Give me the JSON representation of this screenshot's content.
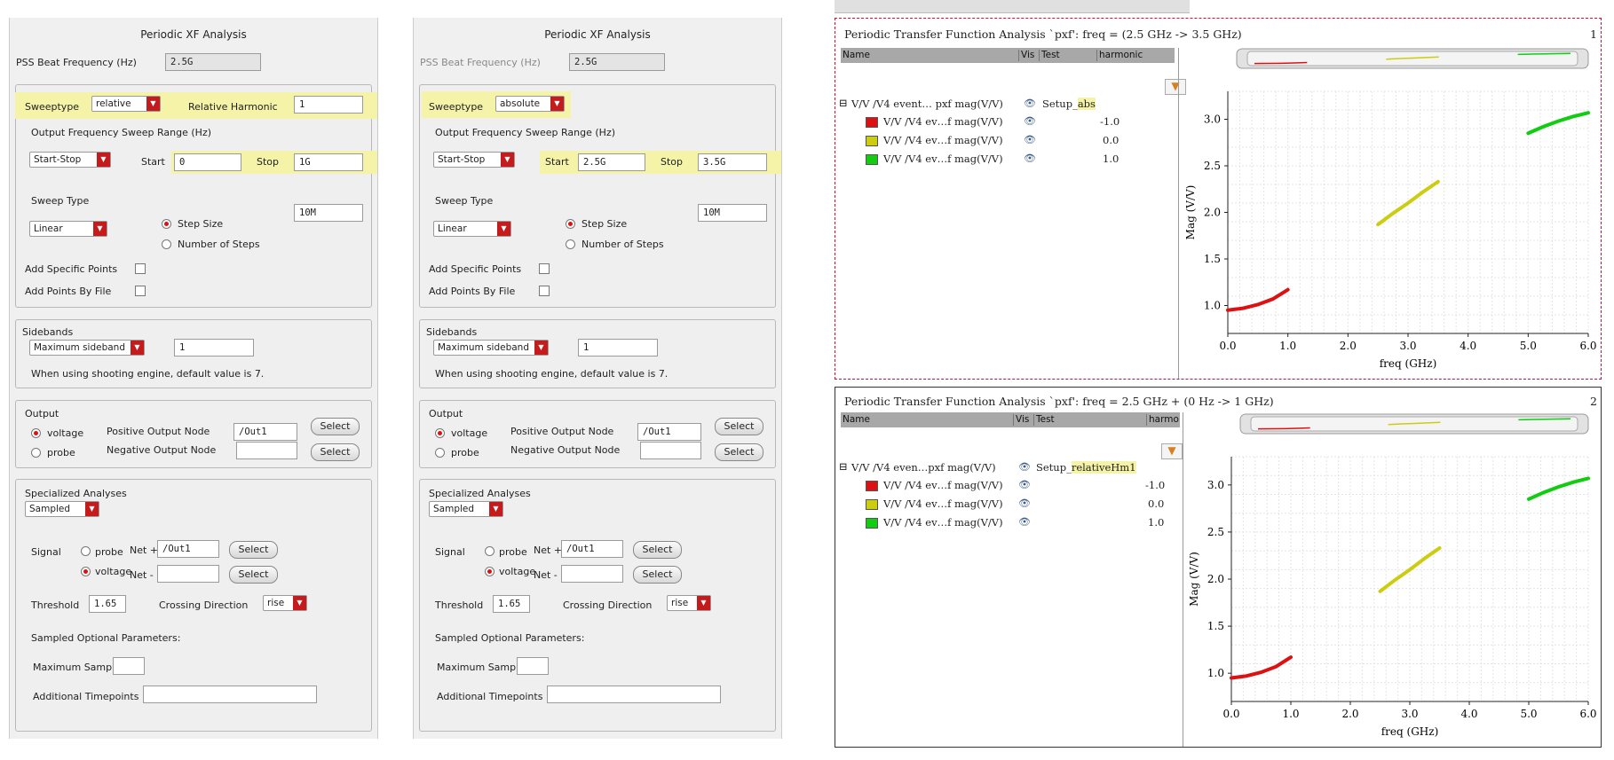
{
  "formA": {
    "title": "Periodic XF Analysis",
    "beat_label": "PSS Beat Frequency (Hz)",
    "beat_value": "2.5G",
    "sweeptype_label": "Sweeptype",
    "sweeptype_value": "relative",
    "rel_harm_label": "Relative Harmonic",
    "rel_harm_value": "1",
    "range_label": "Output Frequency Sweep Range (Hz)",
    "range_mode": "Start-Stop",
    "start_label": "Start",
    "start_value": "0",
    "stop_label": "Stop",
    "stop_value": "1G",
    "sweep_type_label": "Sweep Type",
    "sweep_type_value": "Linear",
    "step_size_label": "Step Size",
    "num_steps_label": "Number of Steps",
    "step_value": "10M",
    "add_points_label": "Add Specific Points",
    "add_file_label": "Add Points By File",
    "sidebands_label": "Sidebands",
    "sidebands_mode": "Maximum sideband",
    "sidebands_value": "1",
    "sidebands_note": "When using shooting engine, default value is 7.",
    "output_label": "Output",
    "voltage_label": "voltage",
    "probe_label": "probe",
    "pos_node_label": "Positive Output Node",
    "pos_node_value": "/Out1",
    "neg_node_label": "Negative Output Node",
    "neg_node_value": "",
    "select_label": "Select",
    "spec_label": "Specialized Analyses",
    "spec_value": "Sampled",
    "signal_label": "Signal",
    "net_plus_label": "Net +",
    "net_plus_value": "/Out1",
    "net_minus_label": "Net -",
    "net_minus_value": "",
    "threshold_label": "Threshold",
    "threshold_value": "1.65",
    "crossing_label": "Crossing Direction",
    "crossing_value": "rise",
    "sampled_opt_label": "Sampled Optional Parameters:",
    "max_sample_label": "Maximum Sample",
    "max_sample_value": "",
    "add_timepoints_label": "Additional Timepoints",
    "add_timepoints_value": ""
  },
  "formB": {
    "title": "Periodic XF Analysis",
    "beat_label": "PSS Beat Frequency (Hz)",
    "beat_value": "2.5G",
    "sweeptype_label": "Sweeptype",
    "sweeptype_value": "absolute",
    "range_label": "Output Frequency Sweep Range (Hz)",
    "range_mode": "Start-Stop",
    "start_label": "Start",
    "start_value": "2.5G",
    "stop_label": "Stop",
    "stop_value": "3.5G",
    "sweep_type_label": "Sweep Type",
    "sweep_type_value": "Linear",
    "step_size_label": "Step Size",
    "num_steps_label": "Number of Steps",
    "step_value": "10M",
    "add_points_label": "Add Specific Points",
    "add_file_label": "Add Points By File",
    "sidebands_label": "Sidebands",
    "sidebands_mode": "Maximum sideband",
    "sidebands_value": "1",
    "sidebands_note": "When using shooting engine, default value is 7.",
    "output_label": "Output",
    "voltage_label": "voltage",
    "probe_label": "probe",
    "pos_node_label": "Positive Output Node",
    "pos_node_value": "/Out1",
    "neg_node_label": "Negative Output Node",
    "neg_node_value": "",
    "select_label": "Select",
    "spec_label": "Specialized Analyses",
    "spec_value": "Sampled",
    "signal_label": "Signal",
    "net_plus_label": "Net +",
    "net_plus_value": "/Out1",
    "net_minus_label": "Net -",
    "net_minus_value": "",
    "threshold_label": "Threshold",
    "threshold_value": "1.65",
    "crossing_label": "Crossing Direction",
    "crossing_value": "rise",
    "sampled_opt_label": "Sampled Optional Parameters:",
    "max_sample_label": "Maximum Sample",
    "max_sample_value": "",
    "add_timepoints_label": "Additional Timepoints",
    "add_timepoints_value": ""
  },
  "plots": [
    {
      "title": "Periodic Transfer Function Analysis `pxf': freq = (2.5 GHz -> 3.5 GHz)",
      "index": "1",
      "columns": [
        "Name",
        "Vis",
        "Test",
        "harmonic"
      ],
      "parent": {
        "name": "V/V /V4 event… pxf mag(V/V)",
        "test_prefix": "Setup_",
        "test_hl": "abs"
      },
      "rows": [
        {
          "name": "V/V /V4 ev…f mag(V/V)",
          "harmonic": "-1.0",
          "color": "#dd1111"
        },
        {
          "name": "V/V /V4 ev…f mag(V/V)",
          "harmonic": "0.0",
          "color": "#cccc11"
        },
        {
          "name": "V/V /V4 ev…f mag(V/V)",
          "harmonic": "1.0",
          "color": "#11cc11"
        }
      ]
    },
    {
      "title": "Periodic Transfer Function Analysis `pxf': freq = 2.5 GHz + (0 Hz -> 1 GHz)",
      "index": "2",
      "columns": [
        "Name",
        "Vis",
        "Test",
        "harmor"
      ],
      "parent": {
        "name": "V/V /V4 even…pxf mag(V/V)",
        "test_prefix": "Setup_",
        "test_hl": "relativeHm1"
      },
      "rows": [
        {
          "name": "V/V /V4 ev…f mag(V/V)",
          "harmonic": "-1.0",
          "color": "#dd1111"
        },
        {
          "name": "V/V /V4 ev…f mag(V/V)",
          "harmonic": "0.0",
          "color": "#cccc11"
        },
        {
          "name": "V/V /V4 ev…f mag(V/V)",
          "harmonic": "1.0",
          "color": "#11cc11"
        }
      ]
    }
  ],
  "chart_data": [
    {
      "type": "line",
      "xlabel": "freq (GHz)",
      "ylabel": "Mag (V/V)",
      "xlim": [
        0,
        6
      ],
      "ylim": [
        0.7,
        3.3
      ],
      "xticks": [
        "0.0",
        "1.0",
        "2.0",
        "3.0",
        "4.0",
        "5.0",
        "6.0"
      ],
      "yticks": [
        "1.0",
        "1.5",
        "2.0",
        "2.5",
        "3.0"
      ],
      "grid": true,
      "series": [
        {
          "color": "#dd1111",
          "x": [
            0.0,
            0.25,
            0.5,
            0.75,
            1.0
          ],
          "y": [
            0.95,
            0.97,
            1.01,
            1.07,
            1.17
          ]
        },
        {
          "color": "#cccc11",
          "x": [
            2.5,
            2.75,
            3.0,
            3.25,
            3.5
          ],
          "y": [
            1.87,
            1.99,
            2.1,
            2.22,
            2.33
          ]
        },
        {
          "color": "#11cc11",
          "x": [
            5.0,
            5.25,
            5.5,
            5.75,
            6.0
          ],
          "y": [
            2.85,
            2.92,
            2.98,
            3.03,
            3.07
          ]
        }
      ]
    },
    {
      "type": "line",
      "xlabel": "freq (GHz)",
      "ylabel": "Mag (V/V)",
      "xlim": [
        0,
        6
      ],
      "ylim": [
        0.7,
        3.3
      ],
      "xticks": [
        "0.0",
        "1.0",
        "2.0",
        "3.0",
        "4.0",
        "5.0",
        "6.0"
      ],
      "yticks": [
        "1.0",
        "1.5",
        "2.0",
        "2.5",
        "3.0"
      ],
      "grid": true,
      "series": [
        {
          "color": "#dd1111",
          "x": [
            0.0,
            0.25,
            0.5,
            0.75,
            1.0
          ],
          "y": [
            0.95,
            0.97,
            1.01,
            1.07,
            1.17
          ]
        },
        {
          "color": "#cccc11",
          "x": [
            2.5,
            2.75,
            3.0,
            3.25,
            3.5
          ],
          "y": [
            1.87,
            1.99,
            2.1,
            2.22,
            2.33
          ]
        },
        {
          "color": "#11cc11",
          "x": [
            5.0,
            5.25,
            5.5,
            5.75,
            6.0
          ],
          "y": [
            2.85,
            2.92,
            2.98,
            3.03,
            3.07
          ]
        }
      ]
    }
  ]
}
